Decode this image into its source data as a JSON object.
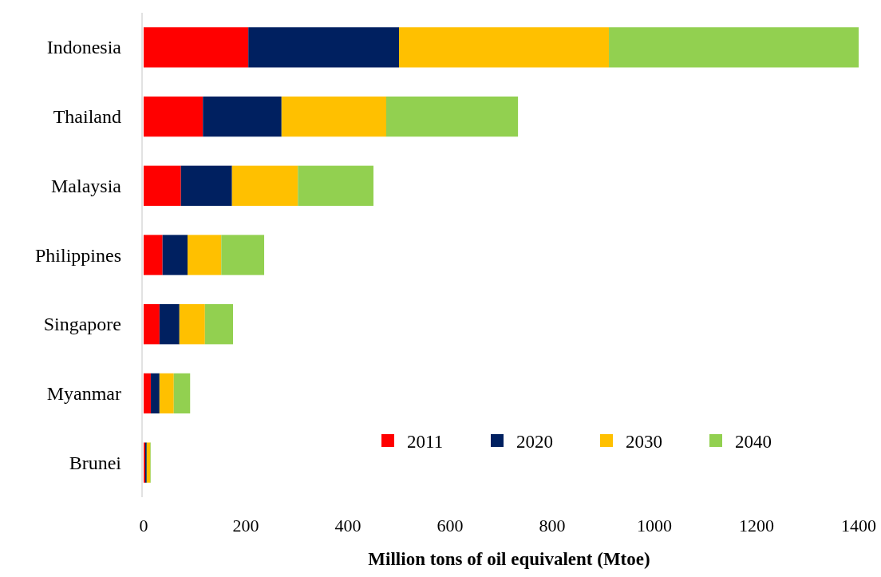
{
  "chart_data": {
    "type": "bar",
    "orientation": "horizontal",
    "stacked": true,
    "xlabel": "Million tons of oil equivalent (Mtoe)",
    "categories": [
      "Indonesia",
      "Thailand",
      "Malaysia",
      "Philippines",
      "Singapore",
      "Myanmar",
      "Brunei"
    ],
    "series": [
      {
        "name": "2011",
        "color": "#ff0000",
        "values": [
          205,
          116,
          73,
          37,
          31,
          14,
          3
        ]
      },
      {
        "name": "2020",
        "color": "#002060",
        "values": [
          295,
          154,
          100,
          49,
          39,
          17,
          3
        ]
      },
      {
        "name": "2030",
        "color": "#ffc000",
        "values": [
          411,
          205,
          129,
          66,
          50,
          28,
          7
        ]
      },
      {
        "name": "2040",
        "color": "#92d050",
        "values": [
          489,
          258,
          148,
          84,
          55,
          32,
          1
        ]
      }
    ],
    "xlim": [
      0,
      1400
    ],
    "xticks": [
      0,
      200,
      400,
      600,
      800,
      1000,
      1200,
      1400
    ],
    "grid": false,
    "legend": "bottom right"
  }
}
